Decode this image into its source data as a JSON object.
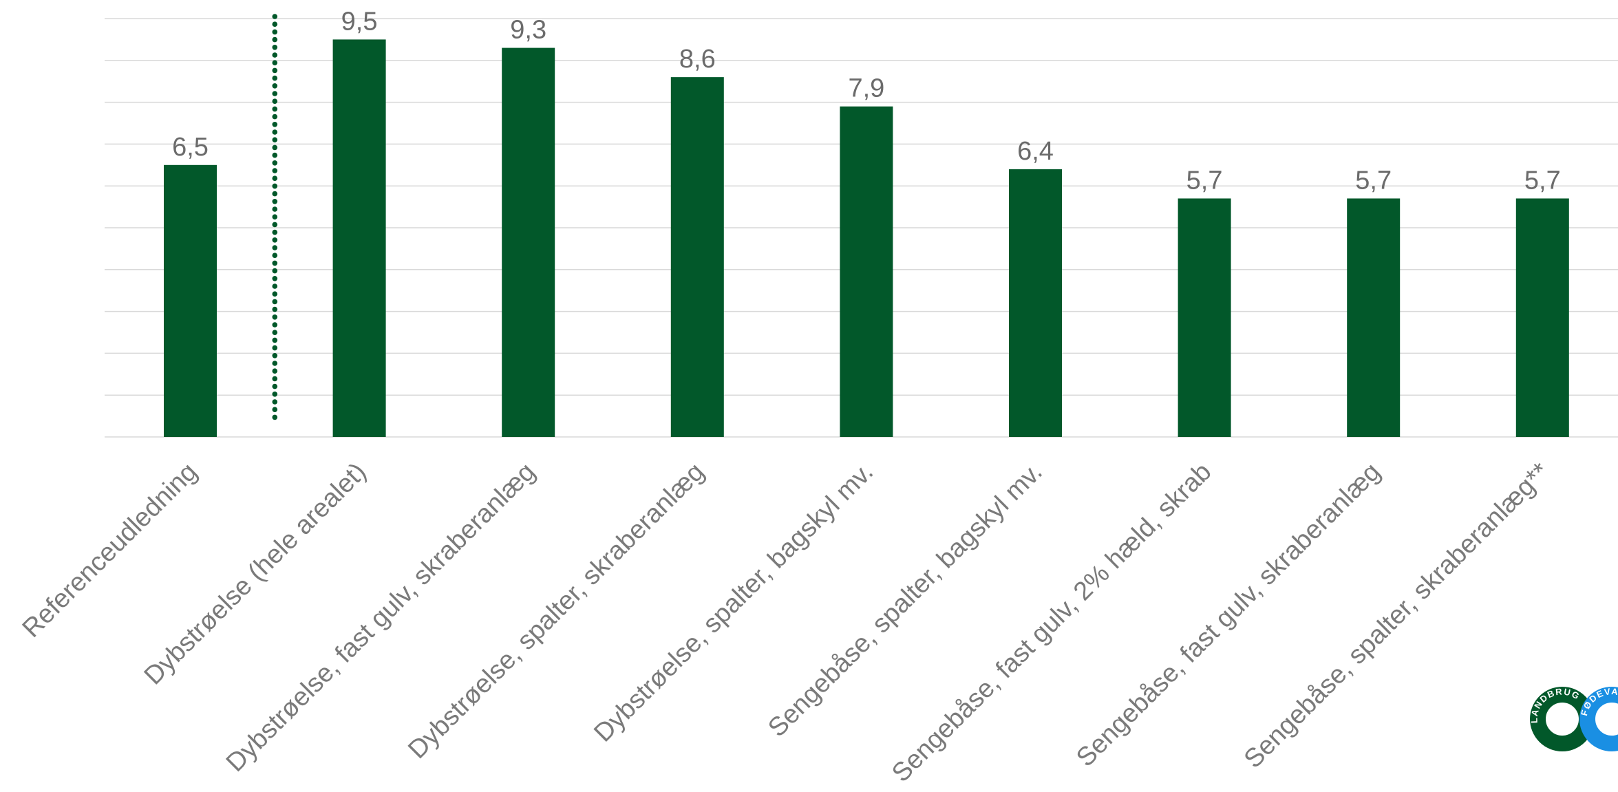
{
  "chart_data": {
    "type": "bar",
    "title": "",
    "xlabel": "",
    "ylabel": "",
    "ylim": [
      0,
      10
    ],
    "grid": true,
    "categories": [
      "Referenceudledning",
      "Dybstrøelse (hele arealet)",
      "Dybstrøelse, fast gulv, skraberanlæg",
      "Dybstrøelse, spalter, skraberanlæg",
      "Dybstrøelse, spalter, bagskyl mv.",
      "Sengebåse, spalter, bagskyl mv.",
      "Sengebåse, fast gulv, 2% hæld, skrab",
      "Sengebåse, fast gulv, skraberanlæg",
      "Sengebåse, spalter, skraberanlæg**"
    ],
    "values": [
      6.5,
      9.5,
      9.3,
      8.6,
      7.9,
      6.4,
      5.7,
      5.7,
      5.7
    ],
    "data_labels": [
      "6,5",
      "9,5",
      "9,3",
      "8,6",
      "7,9",
      "6,4",
      "5,7",
      "5,7",
      "5,7"
    ],
    "bar_color": "#02582a",
    "grid_color": "#d9d9d9",
    "separator": {
      "after_category_index": 0,
      "style": "dotted",
      "color": "#02582a"
    }
  },
  "logo": {
    "text_left": "LANDBRUG",
    "text_right": "FØDEVARER",
    "color_left": "#02582a",
    "color_right": "#1a8fe3"
  }
}
